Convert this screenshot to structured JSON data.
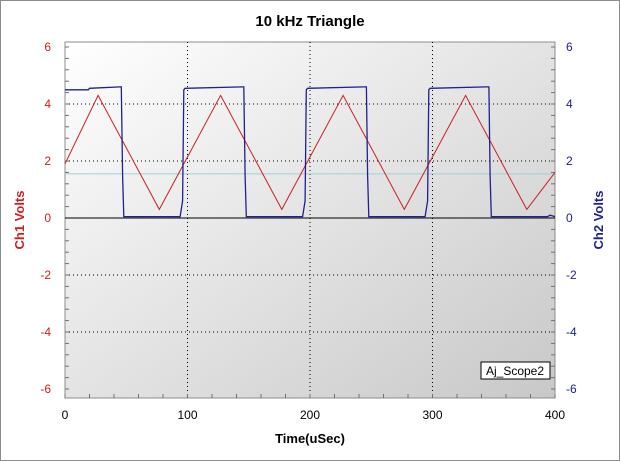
{
  "chart_data": {
    "type": "line",
    "title": "10 kHz Triangle",
    "xlabel": "Time(uSec)",
    "ylabel_left": "Ch1 Volts",
    "ylabel_right": "Ch2 Volts",
    "xlim": [
      0,
      400
    ],
    "ylim": [
      -6,
      6
    ],
    "x_ticks": [
      "0",
      "100",
      "200",
      "300",
      "400"
    ],
    "y_ticks": [
      "6",
      "4",
      "2",
      "0",
      "-2",
      "-4",
      "-6"
    ],
    "reference_line_volts": 1.55,
    "grid": "dotted",
    "legend_label": "Aj_Scope2",
    "legend_position": "bottom-right",
    "colors": {
      "ch1": "#cc2020",
      "ch2": "#202090",
      "reference": "#9fd0d8"
    },
    "series": [
      {
        "axis": "left",
        "x": [
          0,
          27,
          77,
          127,
          177,
          227,
          277,
          327,
          377,
          400
        ],
        "values": [
          1.9,
          4.3,
          0.3,
          4.3,
          0.3,
          4.3,
          0.3,
          4.3,
          0.3,
          1.6
        ]
      },
      {
        "axis": "right",
        "x": [
          0,
          19,
          20,
          45,
          46,
          47,
          48,
          94,
          96,
          97,
          98,
          145,
          146,
          147,
          148,
          194,
          196,
          197,
          198,
          244,
          246,
          247,
          248,
          294,
          296,
          297,
          298,
          344,
          346,
          347,
          348,
          394,
          396,
          400
        ],
        "values": [
          4.5,
          4.5,
          4.55,
          4.6,
          4.6,
          1.5,
          0.05,
          0.05,
          0.6,
          4.5,
          4.55,
          4.6,
          4.6,
          1.5,
          0.05,
          0.05,
          0.6,
          4.5,
          4.55,
          4.6,
          4.6,
          1.5,
          0.05,
          0.05,
          0.6,
          4.5,
          4.55,
          4.6,
          4.6,
          1.5,
          0.05,
          0.05,
          0.1,
          0.05
        ]
      }
    ]
  }
}
